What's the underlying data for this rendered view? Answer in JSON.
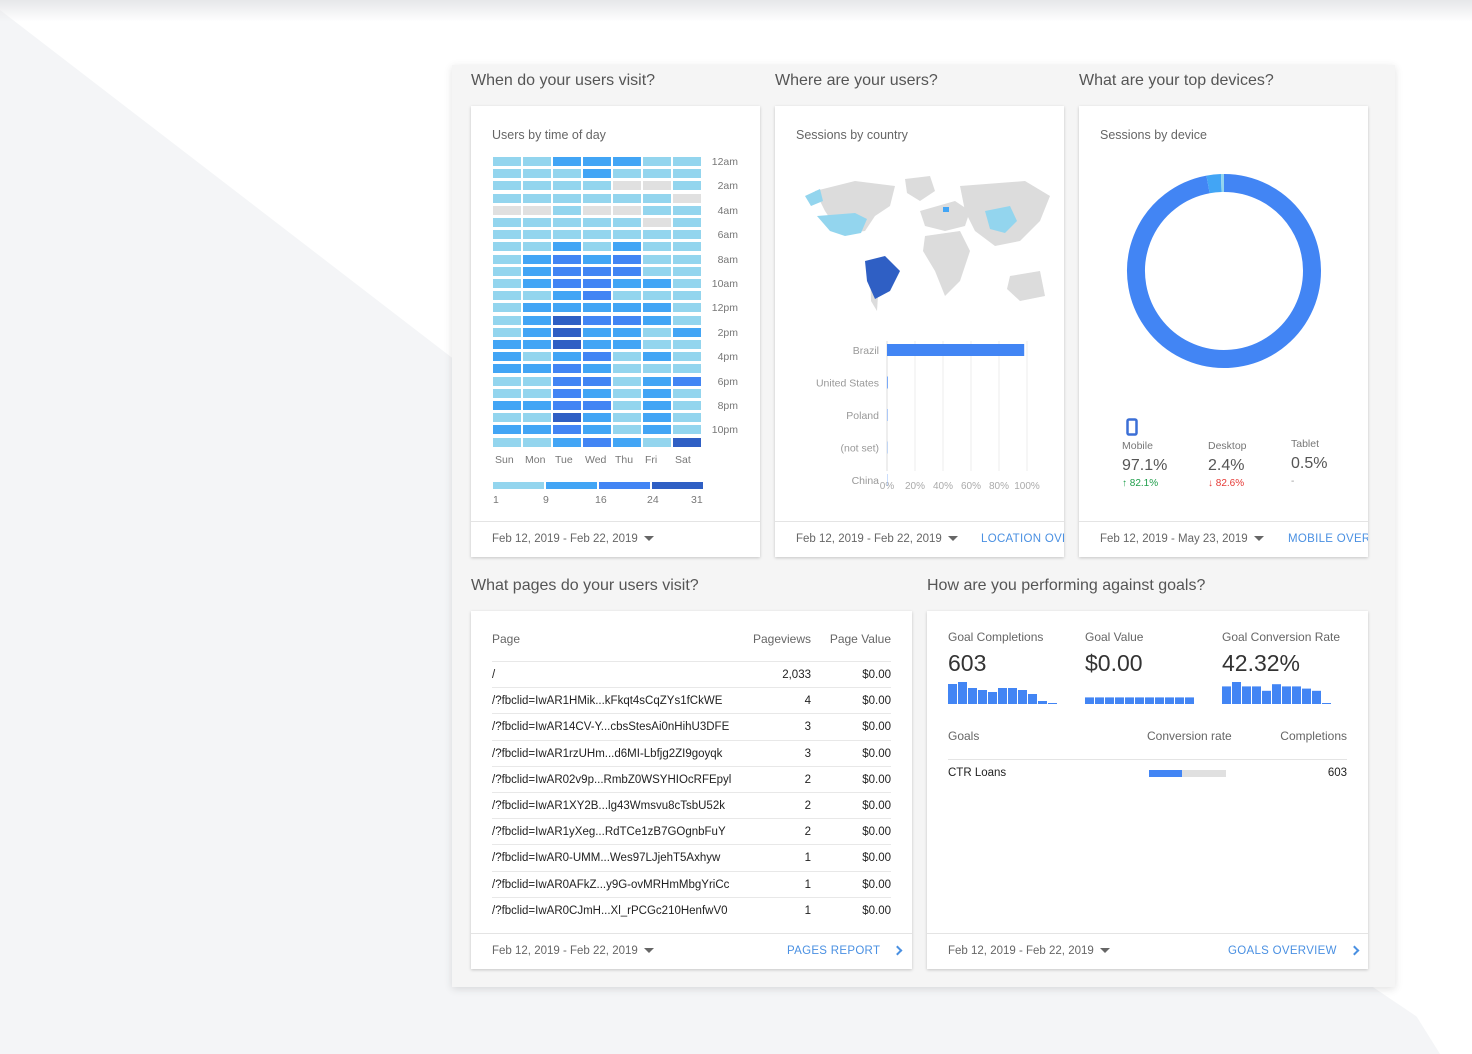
{
  "sections": {
    "when": "When do your users visit?",
    "where": "Where are your users?",
    "devices": "What are your top devices?",
    "pages": "What pages do your users visit?",
    "goals": "How are you performing against goals?"
  },
  "time_card": {
    "title": "Users by time of day",
    "hours": [
      "12am",
      "2am",
      "4am",
      "6am",
      "8am",
      "10am",
      "12pm",
      "2pm",
      "4pm",
      "6pm",
      "8pm",
      "10pm"
    ],
    "days": [
      "Sun",
      "Mon",
      "Tue",
      "Wed",
      "Thu",
      "Fri",
      "Sat"
    ],
    "levels": [
      [
        1,
        1,
        2,
        2,
        2,
        1,
        1
      ],
      [
        1,
        1,
        1,
        2,
        1,
        1,
        1
      ],
      [
        1,
        1,
        1,
        1,
        0,
        0,
        1
      ],
      [
        1,
        1,
        1,
        1,
        1,
        1,
        0
      ],
      [
        0,
        0,
        1,
        0,
        0,
        1,
        1
      ],
      [
        1,
        1,
        1,
        1,
        1,
        0,
        1
      ],
      [
        1,
        1,
        1,
        1,
        1,
        1,
        1
      ],
      [
        1,
        1,
        2,
        1,
        2,
        1,
        1
      ],
      [
        1,
        2,
        3,
        2,
        3,
        1,
        1
      ],
      [
        1,
        2,
        3,
        3,
        3,
        1,
        1
      ],
      [
        1,
        2,
        3,
        3,
        2,
        2,
        1
      ],
      [
        1,
        1,
        2,
        3,
        1,
        1,
        1
      ],
      [
        1,
        2,
        2,
        2,
        2,
        2,
        1
      ],
      [
        1,
        2,
        4,
        3,
        3,
        2,
        1
      ],
      [
        1,
        2,
        4,
        2,
        2,
        1,
        2
      ],
      [
        2,
        2,
        4,
        2,
        2,
        1,
        1
      ],
      [
        2,
        1,
        2,
        3,
        1,
        2,
        1
      ],
      [
        2,
        2,
        3,
        2,
        1,
        1,
        1
      ],
      [
        1,
        1,
        3,
        3,
        1,
        2,
        3
      ],
      [
        1,
        1,
        3,
        2,
        1,
        2,
        1
      ],
      [
        2,
        2,
        3,
        3,
        1,
        2,
        1
      ],
      [
        1,
        1,
        4,
        2,
        1,
        2,
        1
      ],
      [
        2,
        2,
        3,
        2,
        1,
        2,
        1
      ],
      [
        1,
        1,
        2,
        3,
        2,
        1,
        4
      ]
    ],
    "colors": [
      "#e0e0e0",
      "#93d5ee",
      "#42a5f5",
      "#4285f4",
      "#2f5fc4"
    ],
    "legend": [
      "1",
      "9",
      "16",
      "24",
      "31"
    ],
    "date": "Feb 12, 2019 - Feb 22, 2019"
  },
  "country_card": {
    "title": "Sessions by country",
    "date": "Feb 12, 2019 - Feb 22, 2019",
    "link": "LOCATION OVERVIEW"
  },
  "chart_data": {
    "type": "bar",
    "title": "Sessions by country",
    "categories": [
      "Brazil",
      "United States",
      "Poland",
      "(not set)",
      "China"
    ],
    "values": [
      98,
      0.5,
      0.3,
      0.2,
      0.2
    ],
    "xticks": [
      "0%",
      "20%",
      "40%",
      "60%",
      "80%",
      "100%"
    ],
    "xlim": [
      0,
      100
    ],
    "color": "#4285f4"
  },
  "device_card": {
    "title": "Sessions by device",
    "date": "Feb 12, 2019 - May 23, 2019",
    "link": "MOBILE OVERVIEW",
    "items": [
      {
        "name": "Mobile",
        "value": "97.1%",
        "change": "↑ 82.1%",
        "share": 97.1,
        "color": "#4285f4"
      },
      {
        "name": "Desktop",
        "value": "2.4%",
        "change": "↓ 82.6%",
        "share": 2.4,
        "color": "#42a5f5"
      },
      {
        "name": "Tablet",
        "value": "0.5%",
        "change": "-",
        "share": 0.5,
        "color": "#93d5ee"
      }
    ]
  },
  "pages_card": {
    "headers": [
      "Page",
      "Pageviews",
      "Page Value"
    ],
    "date": "Feb 12, 2019 - Feb 22, 2019",
    "link": "PAGES REPORT",
    "rows": [
      [
        "/",
        "2,033",
        "$0.00"
      ],
      [
        "/?fbclid=IwAR1HMik...kFkqt4sCqZYs1fCkWE",
        "4",
        "$0.00"
      ],
      [
        "/?fbclid=IwAR14CV-Y...cbsStesAi0nHihU3DFE",
        "3",
        "$0.00"
      ],
      [
        "/?fbclid=IwAR1rzUHm...d6MI-Lbfjg2ZI9goyqk",
        "3",
        "$0.00"
      ],
      [
        "/?fbclid=IwAR02v9p...RmbZ0WSYHIOcRFEpyl",
        "2",
        "$0.00"
      ],
      [
        "/?fbclid=IwAR1XY2B...lg43Wmsvu8cTsbU52k",
        "2",
        "$0.00"
      ],
      [
        "/?fbclid=IwAR1yXeg...RdTCe1zB7GOgnbFuY",
        "2",
        "$0.00"
      ],
      [
        "/?fbclid=IwAR0-UMM...Wes97LJjehT5Axhyw",
        "1",
        "$0.00"
      ],
      [
        "/?fbclid=IwAR0AFkZ...y9G-ovMRHmMbgYriCc",
        "1",
        "$0.00"
      ],
      [
        "/?fbclid=IwAR0CJmH...Xl_rPCGc210HenfwV0",
        "1",
        "$0.00"
      ]
    ]
  },
  "goals_card": {
    "metrics": [
      {
        "label": "Goal Completions",
        "value": "603",
        "spark": [
          10,
          11,
          8,
          7,
          6,
          8,
          8,
          7,
          5,
          1.5,
          0.3
        ]
      },
      {
        "label": "Goal Value",
        "value": "$0.00",
        "spark": [
          0.3,
          0.3,
          0.3,
          0.3,
          0.3,
          0.3,
          0.3,
          0.3,
          0.3,
          0.3,
          0.3
        ]
      },
      {
        "label": "Goal Conversion Rate",
        "value": "42.32%",
        "spark": [
          8,
          10,
          8,
          8,
          6,
          9,
          8,
          8,
          7,
          6,
          0.3
        ]
      }
    ],
    "headers": [
      "Goals",
      "Conversion rate",
      "Completions"
    ],
    "rows": [
      {
        "goal": "CTR Loans",
        "rate": 42.32,
        "completions": "603"
      }
    ],
    "date": "Feb 12, 2019 - Feb 22, 2019",
    "link": "GOALS OVERVIEW"
  }
}
